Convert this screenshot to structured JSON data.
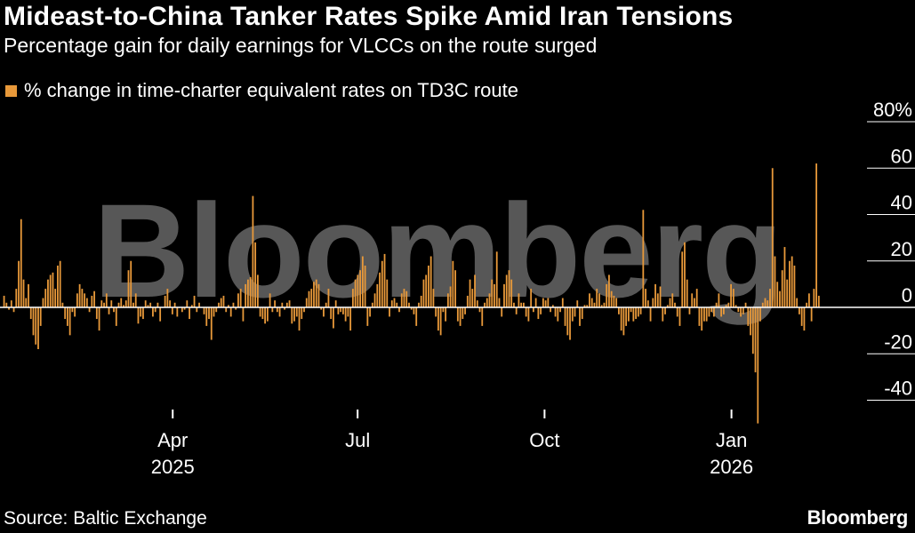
{
  "title": "Mideast-to-China Tanker Rates Spike Amid Iran Tensions",
  "subtitle": "Percentage gain for daily earnings for VLCCs on the route surged",
  "source": "Source: Baltic Exchange",
  "logo": "Bloomberg",
  "watermark": "Bloomberg",
  "colors": {
    "bar": "#e8993a",
    "background": "#000000",
    "text": "#ffffff",
    "zero_line": "#ffffff"
  },
  "chart_data": {
    "type": "bar",
    "title": "Mideast-to-China Tanker Rates Spike Amid Iran Tensions",
    "subtitle": "Percentage gain for daily earnings for VLCCs on the route surged",
    "legend": [
      "% change in time-charter equivalent rates on TD3C route"
    ],
    "legend_position": "top-left",
    "y_axis_position": "right",
    "ylim": [
      -50,
      80
    ],
    "yticks": [
      80,
      60,
      40,
      20,
      0,
      -20,
      -40
    ],
    "ytick_labels": [
      "80%",
      "60",
      "40",
      "20",
      "0",
      "-20",
      "-40"
    ],
    "xlim": [
      "2025-01-06",
      "2026-02-17"
    ],
    "xticks": [
      {
        "date": "2025-04-01",
        "label": "Apr",
        "sublabel": "2025"
      },
      {
        "date": "2025-07-01",
        "label": "Jul",
        "sublabel": ""
      },
      {
        "date": "2025-10-01",
        "label": "Oct",
        "sublabel": ""
      },
      {
        "date": "2026-01-01",
        "label": "Jan",
        "sublabel": "2026"
      }
    ],
    "grid": false,
    "series": [
      {
        "name": "% change in time-charter equivalent rates on TD3C route",
        "start_date": "2025-01-08",
        "values": [
          5,
          2,
          -1,
          3,
          -2,
          8,
          20,
          38,
          12,
          4,
          10,
          -5,
          -12,
          -16,
          -18,
          -8,
          4,
          8,
          12,
          14,
          15,
          8,
          18,
          20,
          2,
          -5,
          -8,
          -12,
          -2,
          -4,
          6,
          10,
          8,
          6,
          4,
          -2,
          5,
          7,
          -5,
          -10,
          3,
          2,
          6,
          -3,
          3,
          -2,
          -8,
          2,
          4,
          1,
          3,
          16,
          20,
          2,
          6,
          -7,
          -4,
          -5,
          3,
          1,
          2,
          -4,
          -2,
          2,
          -6,
          0,
          5,
          8,
          3,
          -3,
          2,
          -4,
          0,
          -2,
          -1,
          3,
          -5,
          1,
          5,
          -2,
          2,
          0,
          -3,
          -8,
          -5,
          -14,
          -4,
          -2,
          2,
          4,
          5,
          -2,
          1,
          -4,
          2,
          -1,
          6,
          8,
          -6,
          10,
          12,
          13,
          48,
          28,
          14,
          -4,
          -5,
          -7,
          -6,
          6,
          -2,
          3,
          -2,
          -4,
          2,
          -1,
          2,
          3,
          -7,
          -6,
          -4,
          -10,
          -5,
          -2,
          4,
          7,
          8,
          11,
          12,
          10,
          -1,
          -4,
          2,
          8,
          -5,
          -9,
          3,
          -3,
          -2,
          -3,
          -6,
          -4,
          -10,
          8,
          12,
          14,
          16,
          22,
          18,
          -8,
          -4,
          2,
          6,
          10,
          15,
          20,
          23,
          12,
          -4,
          3,
          4,
          2,
          -2,
          6,
          8,
          7,
          2,
          -1,
          -3,
          -8,
          2,
          5,
          12,
          14,
          18,
          22,
          8,
          -4,
          -10,
          -12,
          -2,
          -6,
          6,
          9,
          20,
          16,
          -6,
          -8,
          -5,
          -3,
          5,
          12,
          8,
          14,
          3,
          -2,
          -8,
          2,
          4,
          6,
          12,
          10,
          24,
          4,
          -4,
          10,
          14,
          16,
          12,
          2,
          -3,
          6,
          2,
          2,
          -4,
          -6,
          8,
          -2,
          4,
          -5,
          -3,
          4,
          3,
          4,
          -2,
          1,
          -4,
          -6,
          -2,
          4,
          -8,
          -12,
          -14,
          -6,
          -4,
          3,
          -8,
          -5,
          1,
          1,
          6,
          4,
          2,
          8,
          6,
          1,
          2,
          10,
          14,
          7,
          5,
          4,
          -3,
          -10,
          -12,
          -8,
          -6,
          -2,
          -6,
          -5,
          -4,
          -3,
          42,
          8,
          3,
          -6,
          4,
          10,
          6,
          9,
          -6,
          -3,
          1,
          4,
          6,
          2,
          -4,
          -8,
          24,
          28,
          12,
          -3,
          6,
          4,
          8,
          -8,
          -10,
          -6,
          -6,
          -4,
          -2,
          -4,
          2,
          6,
          -4,
          -3,
          1,
          2,
          10,
          8,
          1,
          -2,
          -4,
          -3,
          2,
          -8,
          -12,
          -20,
          -28,
          -50,
          -6,
          2,
          4,
          3,
          8,
          60,
          22,
          11,
          7,
          16,
          26,
          12,
          20,
          22,
          18,
          4,
          -3,
          -8,
          -10,
          2,
          6,
          -6,
          8,
          62,
          5
        ]
      }
    ]
  }
}
